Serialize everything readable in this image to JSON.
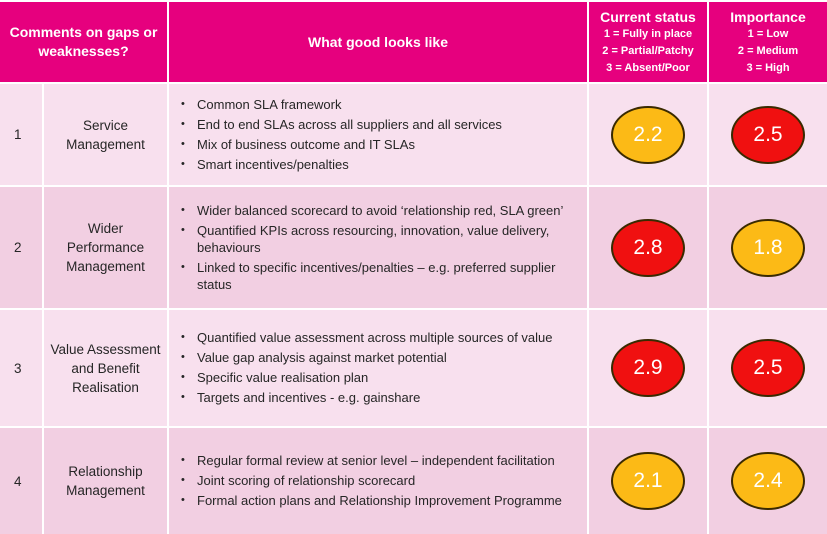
{
  "header": {
    "gaps": "Comments on gaps or weaknesses?",
    "good": "What good looks like",
    "current_status": {
      "title": "Current status",
      "scale": [
        "1 = Fully in place",
        "2 = Partial/Patchy",
        "3 = Absent/Poor"
      ]
    },
    "importance": {
      "title": "Importance",
      "scale": [
        "1 = Low",
        "2 = Medium",
        "3 = High"
      ]
    }
  },
  "rows": [
    {
      "num": "1",
      "name": "Service Management",
      "bullets": [
        "Common SLA framework",
        "End to end SLAs across all suppliers and all services",
        "Mix of business outcome and IT SLAs",
        "Smart incentives/penalties"
      ],
      "current_status": "2.2",
      "current_color": "amber",
      "importance": "2.5",
      "importance_color": "red"
    },
    {
      "num": "2",
      "name": "Wider Performance Management",
      "bullets": [
        "Wider balanced scorecard to avoid ‘relationship red, SLA green’",
        "Quantified KPIs across resourcing, innovation, value delivery, behaviours",
        "Linked to specific incentives/penalties – e.g. preferred supplier status"
      ],
      "current_status": "2.8",
      "current_color": "red",
      "importance": "1.8",
      "importance_color": "amber"
    },
    {
      "num": "3",
      "name": "Value Assessment and Benefit Realisation",
      "bullets": [
        "Quantified value assessment across multiple sources  of value",
        "Value gap analysis against market potential",
        "Specific value realisation plan",
        "Targets and incentives - e.g. gainshare"
      ],
      "current_status": "2.9",
      "current_color": "red",
      "importance": "2.5",
      "importance_color": "red"
    },
    {
      "num": "4",
      "name": "Relationship Management",
      "bullets": [
        "Regular formal review at senior level – independent facilitation",
        "Joint scoring of relationship scorecard",
        "Formal action plans and Relationship Improvement Programme"
      ],
      "current_status": "2.1",
      "current_color": "amber",
      "importance": "2.4",
      "importance_color": "amber"
    }
  ],
  "colors": {
    "header": "#e6007e",
    "row_light": "#f8e0ee",
    "row_dark": "#f2cfe2",
    "red": "#f01010",
    "amber": "#fcba16"
  }
}
